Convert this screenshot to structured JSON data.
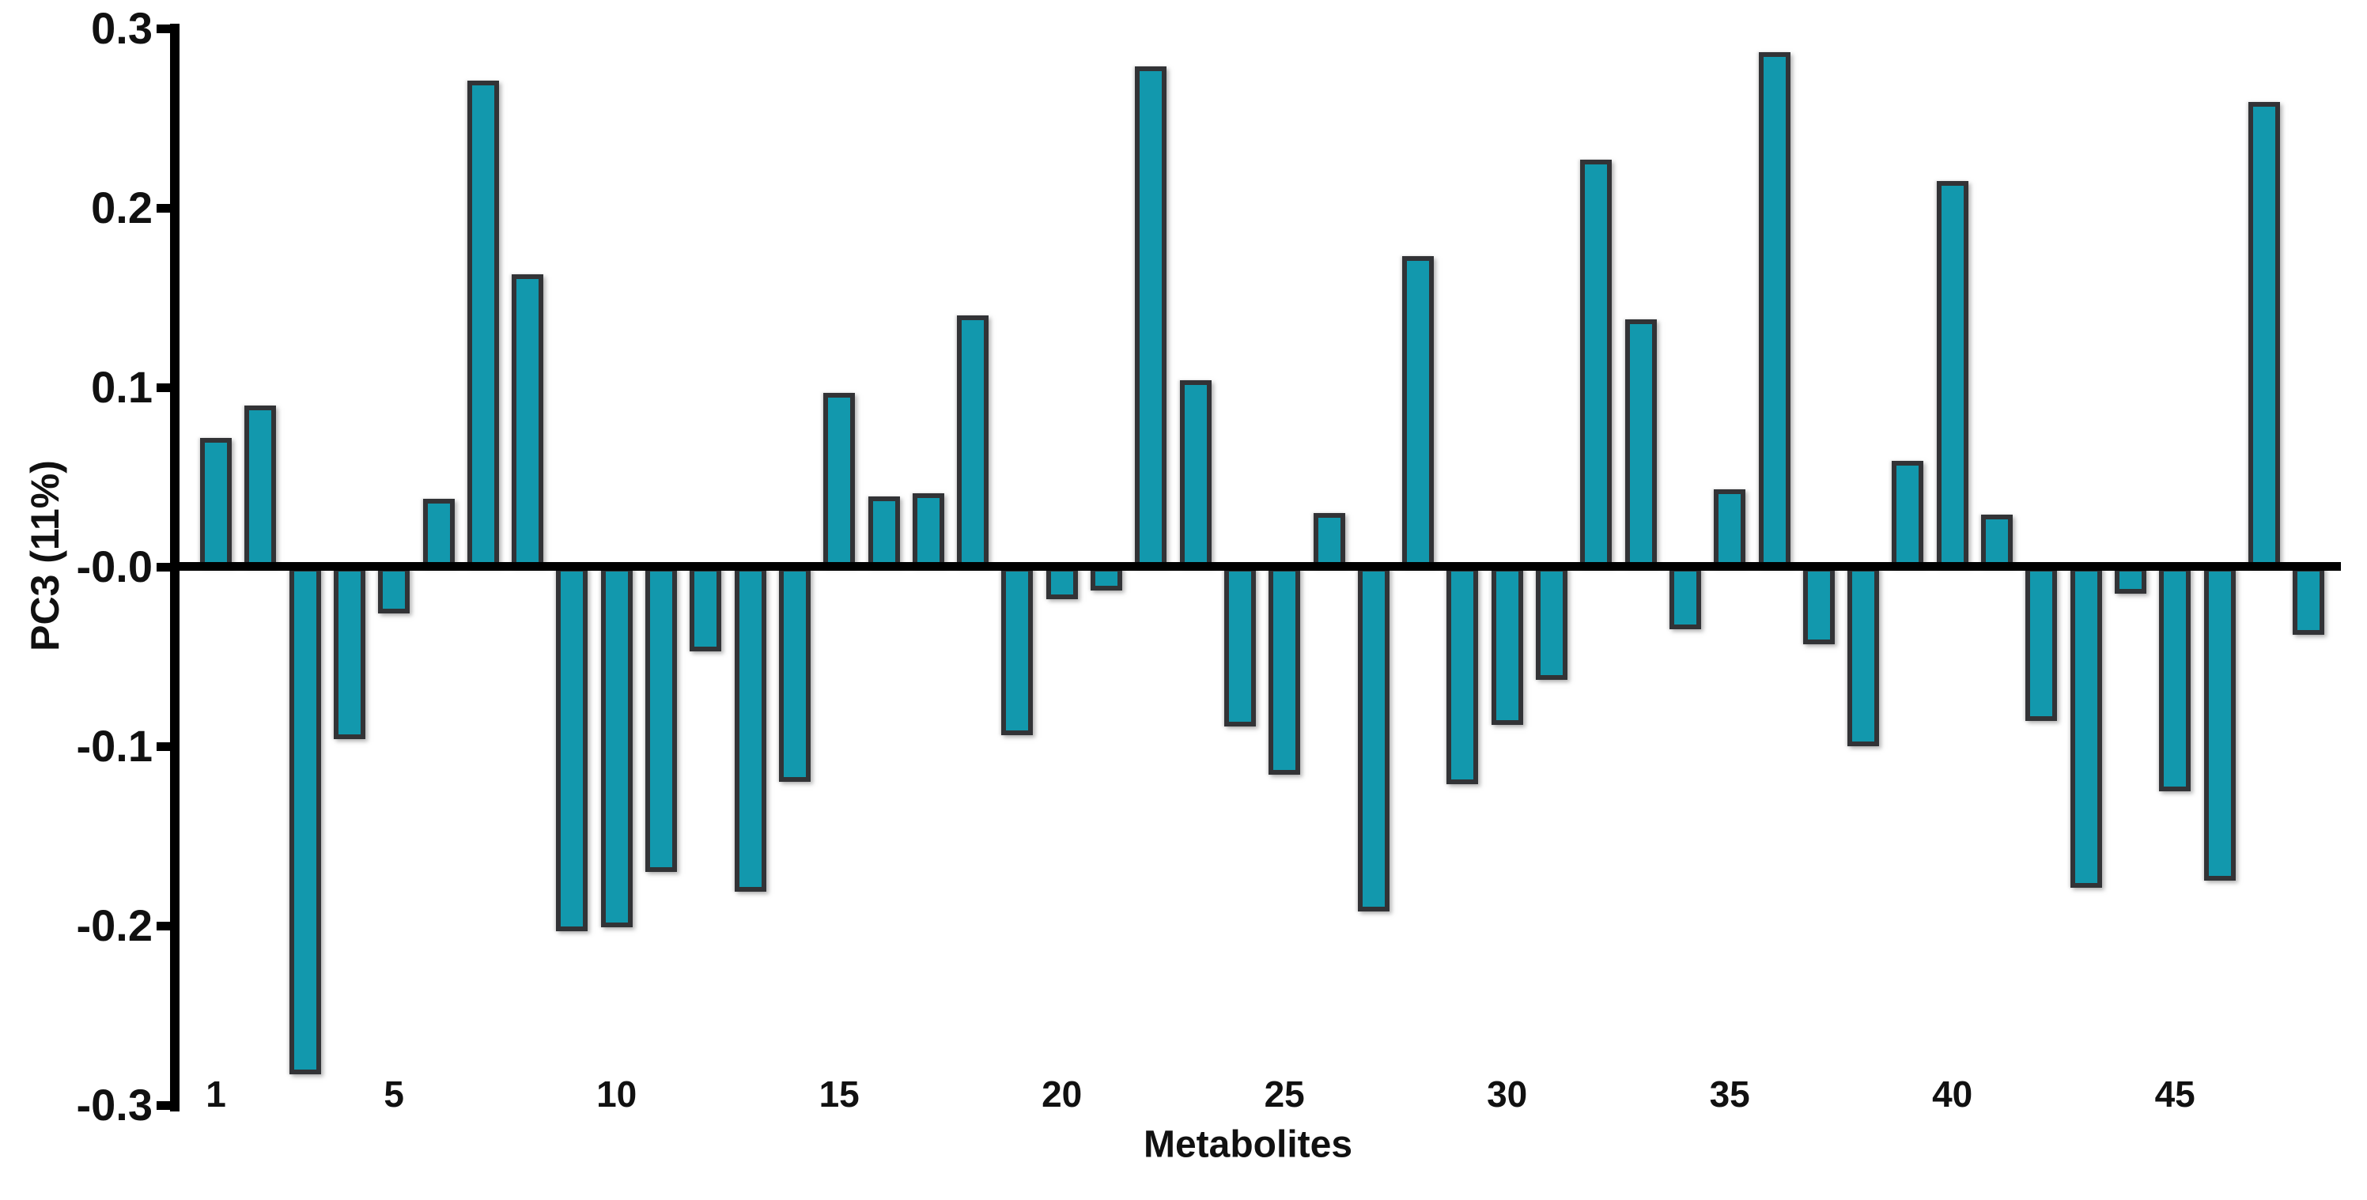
{
  "chart_data": {
    "type": "bar",
    "title": "",
    "xlabel": "Metabolites",
    "ylabel": "PC3 (11%)",
    "x": [
      1,
      2,
      3,
      4,
      5,
      6,
      7,
      8,
      9,
      10,
      11,
      12,
      13,
      14,
      15,
      16,
      17,
      18,
      19,
      20,
      21,
      22,
      23,
      24,
      25,
      26,
      27,
      28,
      29,
      30,
      31,
      32,
      33,
      34,
      35,
      36,
      37,
      38,
      39,
      40,
      41,
      42,
      43,
      44,
      45,
      46,
      47,
      48
    ],
    "values": [
      0.072,
      0.09,
      -0.283,
      -0.096,
      -0.026,
      0.038,
      0.271,
      0.163,
      -0.203,
      -0.201,
      -0.17,
      -0.047,
      -0.181,
      -0.12,
      0.097,
      0.039,
      0.041,
      0.14,
      -0.094,
      -0.018,
      -0.013,
      0.279,
      0.104,
      -0.089,
      -0.116,
      0.03,
      -0.192,
      0.173,
      -0.121,
      -0.088,
      -0.063,
      0.227,
      0.138,
      -0.035,
      0.043,
      0.287,
      -0.043,
      -0.1,
      0.059,
      0.215,
      0.029,
      -0.086,
      -0.179,
      -0.015,
      -0.125,
      -0.175,
      0.259,
      -0.038
    ],
    "ylim": [
      -0.3,
      0.3
    ],
    "ytick_values": [
      0.3,
      0.2,
      0.1,
      0,
      -0.1,
      -0.2,
      -0.3
    ],
    "ytick_labels": [
      "0.3",
      "0.2",
      "0.1",
      "-0.0",
      "-0.1",
      "-0.2",
      "-0.3"
    ],
    "xtick_values": [
      1,
      5,
      10,
      15,
      20,
      25,
      30,
      35,
      40,
      45
    ],
    "grid": false,
    "legend_position": "none",
    "colors": {
      "bar_fill": "#1298AD",
      "bar_border": "#323336",
      "axis": "#000000",
      "text": "#111111"
    }
  }
}
